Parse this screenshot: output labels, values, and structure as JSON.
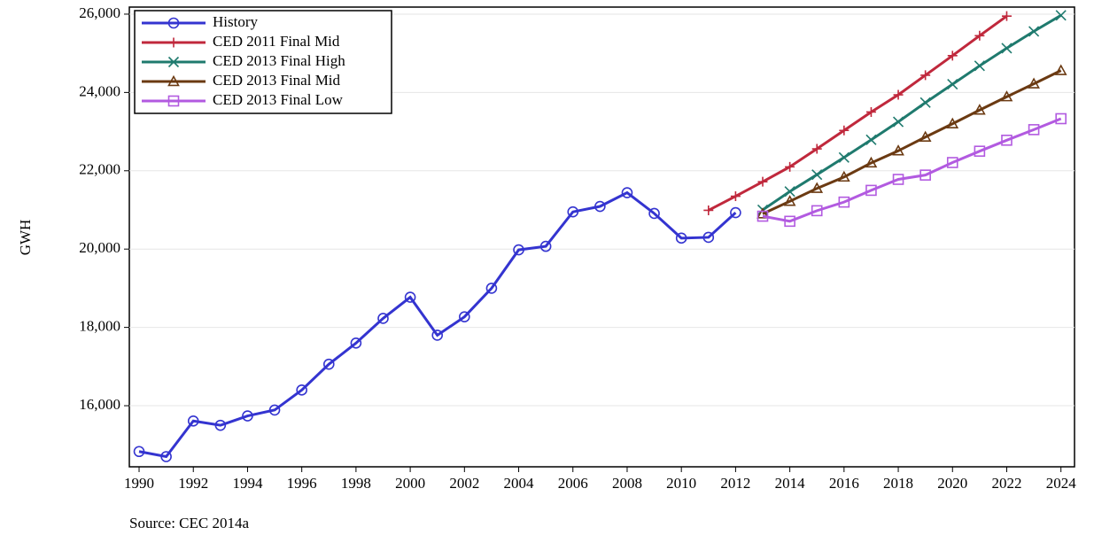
{
  "chart_data": {
    "type": "line",
    "y_label": "GWH",
    "source": "Source: CEC 2014a",
    "xlim": [
      1989.64,
      2024.5
    ],
    "xticks": [
      1990,
      1992,
      1994,
      1996,
      1998,
      2000,
      2002,
      2004,
      2006,
      2008,
      2010,
      2012,
      2014,
      2016,
      2018,
      2020,
      2022,
      2024
    ],
    "ylim": [
      14440,
      26180
    ],
    "yticks": [
      {
        "value": 16000,
        "label": "16,000"
      },
      {
        "value": 18000,
        "label": "18,000"
      },
      {
        "value": 20000,
        "label": "20,000"
      },
      {
        "value": 22000,
        "label": "22,000"
      },
      {
        "value": 24000,
        "label": "24,000"
      },
      {
        "value": 26000,
        "label": "26,000"
      }
    ],
    "grid": true,
    "legend": "top-left",
    "series": [
      {
        "name": "History",
        "color": "#3434d0",
        "marker": "circle",
        "x": [
          1990,
          1991,
          1992,
          1993,
          1994,
          1995,
          1996,
          1997,
          1998,
          1999,
          2000,
          2001,
          2002,
          2003,
          2004,
          2005,
          2006,
          2007,
          2008,
          2009,
          2010,
          2011,
          2012
        ],
        "values": [
          14830,
          14700,
          15610,
          15500,
          15740,
          15890,
          16400,
          17060,
          17600,
          18230,
          18770,
          17800,
          18270,
          19000,
          19980,
          20070,
          20950,
          21090,
          21440,
          20910,
          20280,
          20300,
          20930
        ]
      },
      {
        "name": "CED 2011 Final Mid",
        "color": "#c0283c",
        "marker": "plus",
        "x": [
          2011,
          2012,
          2013,
          2014,
          2015,
          2016,
          2017,
          2018,
          2019,
          2020,
          2021,
          2022
        ],
        "values": [
          20990,
          21350,
          21720,
          22100,
          22560,
          23030,
          23500,
          23940,
          24440,
          24940,
          25450,
          25950
        ]
      },
      {
        "name": "CED 2013 Final High",
        "color": "#1f7a6e",
        "marker": "x",
        "x": [
          2013,
          2014,
          2015,
          2016,
          2017,
          2018,
          2019,
          2020,
          2021,
          2022,
          2023,
          2024
        ],
        "values": [
          21000,
          21470,
          21900,
          22340,
          22790,
          23250,
          23740,
          24210,
          24680,
          25130,
          25560,
          25970
        ]
      },
      {
        "name": "CED 2013 Final Mid",
        "color": "#6b3a12",
        "marker": "triangle",
        "x": [
          2013,
          2014,
          2015,
          2016,
          2017,
          2018,
          2019,
          2020,
          2021,
          2022,
          2023,
          2024
        ],
        "values": [
          20900,
          21220,
          21550,
          21840,
          22200,
          22510,
          22860,
          23200,
          23550,
          23890,
          24220,
          24560
        ]
      },
      {
        "name": "CED 2013 Final Low",
        "color": "#b25ae0",
        "marker": "square",
        "x": [
          2013,
          2014,
          2015,
          2016,
          2017,
          2018,
          2019,
          2020,
          2021,
          2022,
          2023,
          2024
        ],
        "values": [
          20840,
          20710,
          20980,
          21200,
          21500,
          21780,
          21890,
          22210,
          22500,
          22780,
          23050,
          23330
        ]
      }
    ]
  }
}
